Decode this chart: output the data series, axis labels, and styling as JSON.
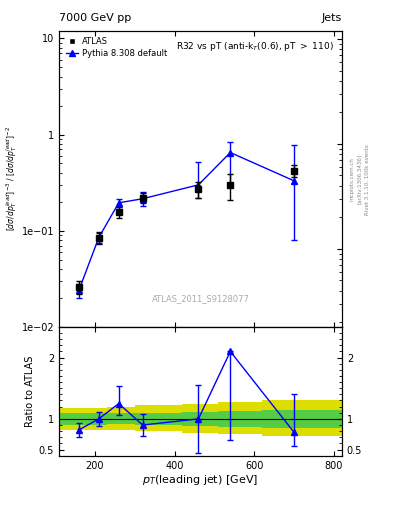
{
  "title_left": "7000 GeV pp",
  "title_right": "Jets",
  "plot_title": "R32 vs pT (anti-k_{T}(0.6), pT > 110)",
  "ylabel_ratio": "Ratio to ATLAS",
  "xlabel": "p_{T}(leading jet) [GeV]",
  "watermark": "ATLAS_2011_S9128077",
  "right_label_1": "mcplots.cern.ch",
  "right_label_2": "[arXiv:1306.3436]",
  "right_label_3": "Rivet 3.1.10, 100k events",
  "atlas_x": [
    160,
    210,
    260,
    320,
    460,
    540,
    700
  ],
  "atlas_y": [
    0.026,
    0.085,
    0.155,
    0.22,
    0.27,
    0.3,
    0.42
  ],
  "atlas_yerr_lo": [
    0.004,
    0.012,
    0.02,
    0.025,
    0.05,
    0.09,
    0.06
  ],
  "atlas_yerr_hi": [
    0.004,
    0.012,
    0.02,
    0.025,
    0.05,
    0.09,
    0.06
  ],
  "pythia_x": [
    160,
    210,
    260,
    320,
    460,
    540,
    700
  ],
  "pythia_y": [
    0.024,
    0.085,
    0.195,
    0.215,
    0.3,
    0.65,
    0.33
  ],
  "pythia_yerr_lo": [
    0.004,
    0.01,
    0.02,
    0.035,
    0.08,
    0.35,
    0.25
  ],
  "pythia_yerr_hi": [
    0.004,
    0.01,
    0.02,
    0.035,
    0.22,
    0.18,
    0.45
  ],
  "ratio_x": [
    160,
    210,
    260,
    320,
    460,
    540,
    700
  ],
  "ratio_y": [
    0.82,
    1.0,
    1.25,
    0.9,
    1.0,
    2.1,
    0.78
  ],
  "ratio_yerr_lo": [
    0.12,
    0.12,
    0.18,
    0.18,
    0.55,
    1.45,
    0.22
  ],
  "ratio_yerr_hi": [
    0.12,
    0.12,
    0.28,
    0.18,
    0.55,
    0.001,
    0.62
  ],
  "band_x_edges": [
    110,
    230,
    300,
    420,
    510,
    620,
    820
  ],
  "band_green_lo": [
    0.9,
    0.92,
    0.9,
    0.88,
    0.87,
    0.85
  ],
  "band_green_hi": [
    1.1,
    1.1,
    1.1,
    1.12,
    1.13,
    1.15
  ],
  "band_yellow_lo": [
    0.82,
    0.82,
    0.8,
    0.77,
    0.75,
    0.72
  ],
  "band_yellow_hi": [
    1.18,
    1.2,
    1.22,
    1.25,
    1.27,
    1.3
  ],
  "xlim": [
    110,
    820
  ],
  "ylim_main_lo": 0.018,
  "ylim_main_hi": 12,
  "ylim_ratio_lo": 0.4,
  "ylim_ratio_hi": 2.5,
  "color_atlas": "black",
  "color_pythia": "blue",
  "color_green": "#55cc44",
  "color_yellow": "#dddd00"
}
